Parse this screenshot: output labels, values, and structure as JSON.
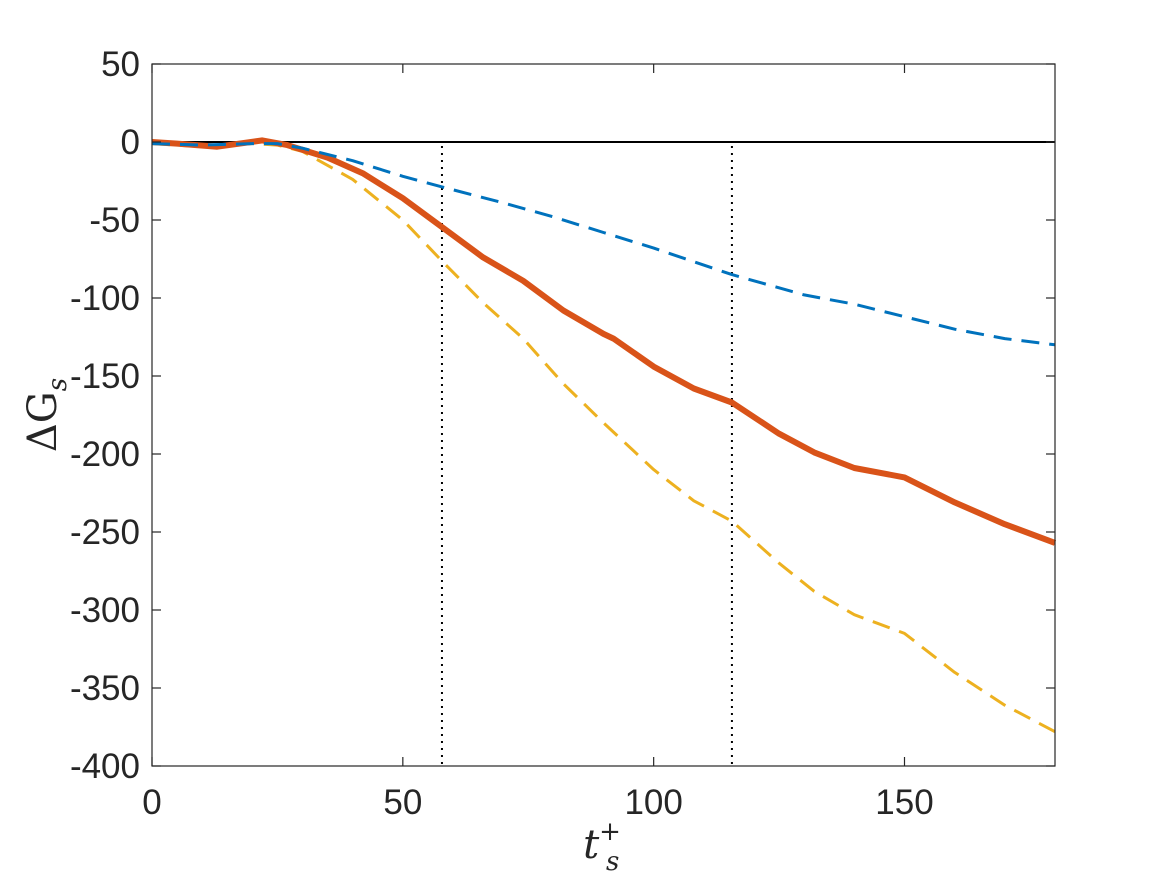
{
  "chart_data": {
    "type": "line",
    "title": "",
    "xlabel": "t",
    "xlabel_sup": "+",
    "xlabel_sub": "s",
    "ylabel": "ΔG",
    "ylabel_sub": "s",
    "xlim": [
      0,
      180
    ],
    "ylim": [
      -400,
      50
    ],
    "xticks": [
      0,
      50,
      100,
      150
    ],
    "xtick_labels": [
      "0",
      "50",
      "100",
      "150"
    ],
    "yticks": [
      50,
      0,
      -50,
      -100,
      -150,
      -200,
      -250,
      -300,
      -350,
      -400
    ],
    "ytick_labels": [
      "50",
      "0",
      "-50",
      "-100",
      "-150",
      "-200",
      "-250",
      "-300",
      "-350",
      "-400"
    ],
    "grid": false,
    "reference_lines": {
      "horizontal_y": 0,
      "vertical_x": [
        57.8,
        115.6
      ]
    },
    "series": [
      {
        "color": "#0072BD",
        "style": "dashed",
        "x": [
          0,
          10,
          20,
          25,
          30,
          40,
          50,
          58,
          70,
          80,
          90,
          100,
          115.6,
          130,
          140,
          150,
          160,
          170,
          180
        ],
        "y": [
          -1,
          -2,
          -1,
          -1,
          -4,
          -12,
          -22,
          -29,
          -39,
          -48,
          -58,
          -68,
          -85,
          -98,
          -104,
          -112,
          -120,
          -126,
          -130
        ]
      },
      {
        "color": "#D95319",
        "style": "solid",
        "x": [
          0,
          5,
          13,
          22,
          27,
          35,
          42,
          50,
          58,
          66,
          74,
          82,
          90,
          92,
          100,
          108,
          115.6,
          125,
          132,
          140,
          150,
          160,
          170,
          180
        ],
        "y": [
          0,
          -1,
          -3,
          1,
          -2,
          -10,
          -20,
          -36,
          -55,
          -74,
          -89,
          -108,
          -123,
          -126,
          -144,
          -158,
          -167,
          -187,
          -199,
          -209,
          -215,
          -231,
          -245,
          -257
        ]
      },
      {
        "color": "#EDB120",
        "style": "dashed",
        "x": [
          0,
          10,
          20,
          25,
          30,
          40,
          50,
          58,
          66,
          74,
          82,
          90,
          100,
          108,
          115.6,
          125,
          132,
          140,
          150,
          160,
          170,
          180
        ],
        "y": [
          -1,
          -3,
          -1,
          -2,
          -6,
          -24,
          -50,
          -77,
          -103,
          -126,
          -155,
          -180,
          -210,
          -230,
          -243,
          -270,
          -288,
          -303,
          -315,
          -340,
          -361,
          -378
        ]
      }
    ]
  }
}
